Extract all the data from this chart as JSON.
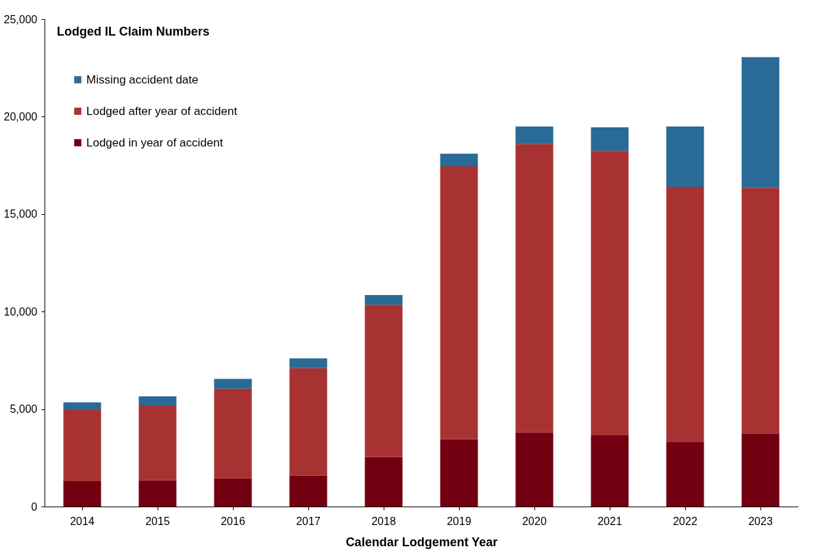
{
  "chart_data": {
    "type": "bar",
    "title": "Lodged IL Claim Numbers",
    "xlabel": "Calendar Lodgement Year",
    "stacked": true,
    "legend": "top left",
    "grid": false,
    "categories": [
      "2014",
      "2015",
      "2016",
      "2017",
      "2018",
      "2019",
      "2020",
      "2021",
      "2022",
      "2023"
    ],
    "series": [
      {
        "name": "Lodged in year of accident",
        "color": "#720010",
        "values": [
          1300,
          1350,
          1450,
          1600,
          2550,
          3450,
          3800,
          3650,
          3300,
          3750
        ]
      },
      {
        "name": "Lodged after year of accident",
        "color": "#a83232",
        "values": [
          3650,
          3850,
          4600,
          5500,
          7800,
          14000,
          14800,
          14600,
          13100,
          12600
        ]
      },
      {
        "name": "Missing accident date",
        "color": "#2a6a96",
        "values": [
          400,
          450,
          500,
          500,
          500,
          650,
          900,
          1200,
          3100,
          6700
        ]
      }
    ],
    "ylim": [
      0,
      25000
    ],
    "yticks": [
      0,
      {
        "value": 5000,
        "label": "5,000"
      },
      {
        "value": 10000,
        "label": "10,000"
      },
      {
        "value": 15000,
        "label": "15,000"
      },
      {
        "value": 20000,
        "label": "20,000"
      },
      {
        "value": 25000,
        "label": "25,000"
      }
    ]
  }
}
